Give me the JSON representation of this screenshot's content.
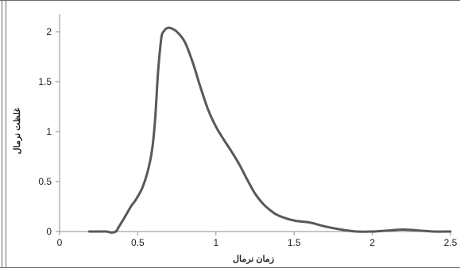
{
  "chart_data": {
    "type": "line",
    "title": "",
    "xlabel": "زمان نرمال",
    "ylabel": "غلظت نرمال",
    "xlim": [
      0,
      2.5
    ],
    "ylim": [
      0,
      2
    ],
    "x_ticks": [
      0,
      0.5,
      1,
      1.5,
      2,
      2.5
    ],
    "y_ticks": [
      0,
      0.5,
      1,
      1.5,
      2
    ],
    "x_tick_labels": [
      "0",
      "0.5",
      "1",
      "1.5",
      "2",
      "2.5"
    ],
    "y_tick_labels": [
      "0",
      "0.5",
      "1",
      "1.5",
      "2"
    ],
    "grid": false,
    "legend": "none",
    "line_color": "#595959",
    "series": [
      {
        "x": [
          0.19,
          0.25,
          0.3,
          0.33,
          0.36,
          0.38,
          0.4,
          0.43,
          0.46,
          0.48,
          0.5,
          0.53,
          0.56,
          0.59,
          0.61,
          0.63,
          0.65,
          0.66,
          0.67,
          0.68,
          0.7,
          0.72,
          0.75,
          0.8,
          0.85,
          0.9,
          0.95,
          1.0,
          1.05,
          1.1,
          1.15,
          1.2,
          1.25,
          1.3,
          1.35,
          1.4,
          1.5,
          1.6,
          1.7,
          1.8,
          1.9,
          2.0,
          2.1,
          2.2,
          2.3,
          2.4,
          2.5
        ],
        "y": [
          0.0,
          0.0,
          0.0,
          -0.01,
          0.0,
          0.05,
          0.1,
          0.18,
          0.26,
          0.3,
          0.35,
          0.44,
          0.58,
          0.8,
          1.1,
          1.6,
          1.93,
          1.99,
          2.01,
          2.03,
          2.04,
          2.03,
          2.0,
          1.9,
          1.7,
          1.45,
          1.22,
          1.05,
          0.92,
          0.8,
          0.67,
          0.52,
          0.38,
          0.28,
          0.21,
          0.16,
          0.11,
          0.09,
          0.05,
          0.02,
          0.0,
          0.0,
          0.01,
          0.02,
          0.01,
          0.0,
          0.0
        ]
      }
    ]
  }
}
